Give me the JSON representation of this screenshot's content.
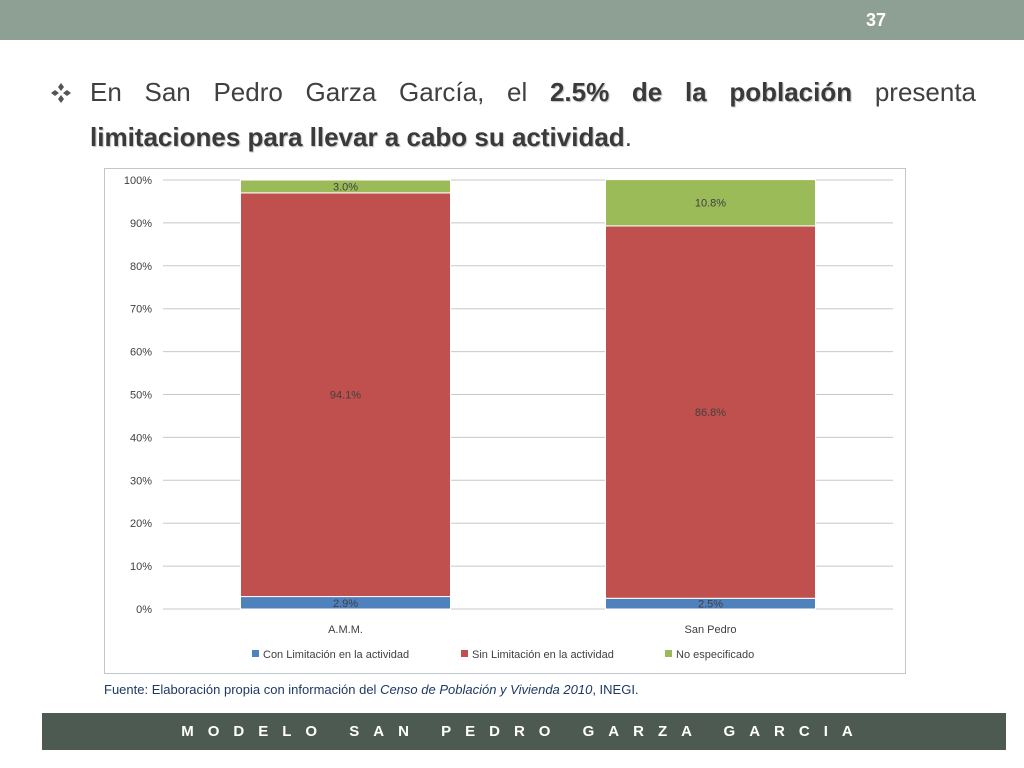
{
  "slide": {
    "page_number": "37",
    "headline": {
      "part1": "En San Pedro Garza García, el ",
      "bold1": "2.5% de la población",
      "part2": " presenta ",
      "bold2": "limitaciones para llevar a cabo su actividad",
      "part3": "."
    },
    "source": {
      "prefix": "Fuente: Elaboración propia con información del ",
      "italic": "Censo de Población y Vivienda  2010",
      "suffix": ", INEGI."
    },
    "footer": "MODELO SAN PEDRO GARZA GARCIA"
  },
  "colors": {
    "header_bar": "#8e9f93",
    "footer_bar": "#4d5a52",
    "series_blue": "#4f81bd",
    "series_red": "#c0504d",
    "series_green": "#9bbb59"
  },
  "chart_data": {
    "type": "bar",
    "stacked": true,
    "categories": [
      "A.M.M.",
      "San Pedro"
    ],
    "series": [
      {
        "name": "Con Limitación en la actividad",
        "color": "#4f81bd",
        "values": [
          2.9,
          2.5
        ],
        "labels": [
          "2.9%",
          "2.5%"
        ]
      },
      {
        "name": "Sin Limitación en la actividad",
        "color": "#c0504d",
        "values": [
          94.1,
          86.8
        ],
        "labels": [
          "94.1%",
          "86.8%"
        ]
      },
      {
        "name": "No especificado",
        "color": "#9bbb59",
        "values": [
          3.0,
          10.8
        ],
        "labels": [
          "3.0%",
          "10.8%"
        ]
      }
    ],
    "ylim": [
      0,
      100
    ],
    "yticks": [
      "0%",
      "10%",
      "20%",
      "30%",
      "40%",
      "50%",
      "60%",
      "70%",
      "80%",
      "90%",
      "100%"
    ],
    "grid": true,
    "legend": "bottom"
  }
}
